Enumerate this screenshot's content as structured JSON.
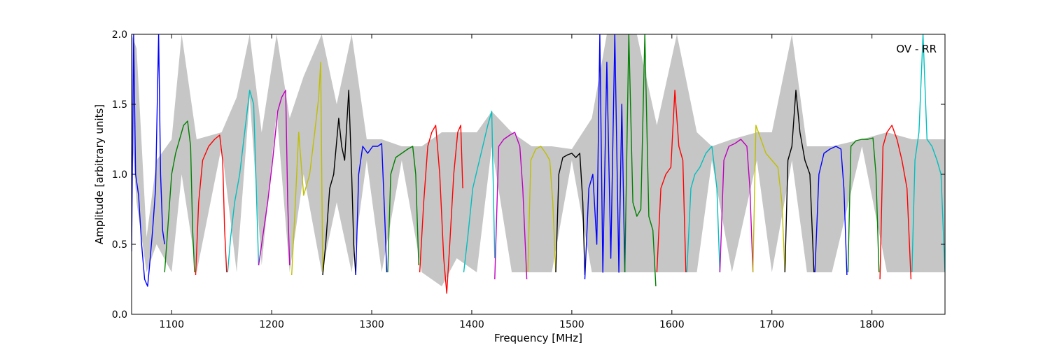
{
  "chart_data": {
    "type": "line",
    "title": "",
    "xlabel": "Frequency [MHz]",
    "ylabel": "Amplitude [arbitrary units]",
    "annotation": "OV - RR",
    "xlim": [
      1060,
      1873
    ],
    "ylim": [
      0.0,
      2.0
    ],
    "x_ticks": [
      1100,
      1200,
      1300,
      1400,
      1500,
      1600,
      1700,
      1800
    ],
    "x_tick_labels": [
      "1100",
      "1200",
      "1300",
      "1400",
      "1500",
      "1600",
      "1700",
      "1800"
    ],
    "y_ticks": [
      0.0,
      0.5,
      1.0,
      1.5,
      2.0
    ],
    "y_tick_labels": [
      "0.0",
      "0.5",
      "1.0",
      "1.5",
      "2.0"
    ],
    "grid": false,
    "background_color": "#c0c0c0",
    "subband_colors": [
      "#0000ff",
      "#008000",
      "#ff0000",
      "#00bfbf",
      "#bf00bf",
      "#bfbf00",
      "#000000"
    ],
    "background_envelope": {
      "color": "#c0c0c0",
      "x": [
        1060,
        1065,
        1075,
        1085,
        1100,
        1110,
        1125,
        1150,
        1165,
        1178,
        1190,
        1205,
        1218,
        1232,
        1250,
        1265,
        1280,
        1295,
        1310,
        1330,
        1350,
        1370,
        1385,
        1405,
        1420,
        1440,
        1460,
        1480,
        1500,
        1520,
        1535,
        1550,
        1565,
        1585,
        1605,
        1625,
        1640,
        1660,
        1685,
        1700,
        1720,
        1735,
        1760,
        1790,
        1815,
        1840,
        1873
      ],
      "upper": [
        2.0,
        1.9,
        0.55,
        1.1,
        1.25,
        2.0,
        1.25,
        1.3,
        1.55,
        2.0,
        1.3,
        2.0,
        1.4,
        1.7,
        2.0,
        1.5,
        2.0,
        1.25,
        1.25,
        1.2,
        1.2,
        1.3,
        1.3,
        1.3,
        1.45,
        1.3,
        1.2,
        1.2,
        1.18,
        1.4,
        2.0,
        2.0,
        2.0,
        1.35,
        2.0,
        1.3,
        1.2,
        1.25,
        1.3,
        1.3,
        2.0,
        1.2,
        1.2,
        1.25,
        1.3,
        1.25,
        1.25
      ],
      "lower": [
        1.3,
        0.8,
        0.3,
        0.5,
        0.3,
        1.0,
        0.3,
        1.2,
        0.3,
        1.55,
        0.35,
        1.45,
        0.3,
        1.0,
        0.3,
        0.8,
        0.3,
        1.1,
        0.3,
        1.1,
        0.3,
        0.2,
        0.4,
        0.3,
        1.2,
        0.3,
        0.3,
        0.3,
        1.1,
        0.3,
        0.3,
        0.3,
        0.3,
        0.3,
        0.3,
        0.3,
        1.1,
        0.3,
        1.1,
        0.3,
        1.1,
        0.3,
        0.3,
        1.2,
        0.3,
        0.3,
        0.3
      ]
    },
    "series": [
      {
        "color": "#0000ff",
        "x": [
          1060,
          1062,
          1064,
          1067,
          1070,
          1073,
          1076,
          1078,
          1081,
          1084,
          1087,
          1089,
          1091,
          1093
        ],
        "y": [
          0.45,
          2.0,
          1.0,
          0.85,
          0.5,
          0.25,
          0.2,
          0.35,
          0.6,
          0.9,
          2.0,
          1.0,
          0.6,
          0.5
        ]
      },
      {
        "color": "#008000",
        "x": [
          1093,
          1096,
          1100,
          1104,
          1108,
          1112,
          1116,
          1119,
          1121,
          1123
        ],
        "y": [
          0.3,
          0.6,
          1.0,
          1.15,
          1.25,
          1.35,
          1.38,
          1.2,
          0.6,
          0.3
        ]
      },
      {
        "color": "#ff0000",
        "x": [
          1124,
          1127,
          1131,
          1137,
          1143,
          1148,
          1151,
          1153,
          1155
        ],
        "y": [
          0.28,
          0.8,
          1.1,
          1.2,
          1.25,
          1.28,
          1.1,
          0.6,
          0.3
        ]
      },
      {
        "color": "#00bfbf",
        "x": [
          1156,
          1159,
          1163,
          1168,
          1173,
          1178,
          1182,
          1185,
          1187
        ],
        "y": [
          0.3,
          0.55,
          0.8,
          1.0,
          1.3,
          1.6,
          1.5,
          0.8,
          0.35
        ]
      },
      {
        "color": "#bf00bf",
        "x": [
          1187,
          1191,
          1196,
          1201,
          1206,
          1210,
          1214,
          1216,
          1218
        ],
        "y": [
          0.35,
          0.55,
          0.8,
          1.1,
          1.45,
          1.55,
          1.6,
          0.8,
          0.35
        ]
      },
      {
        "color": "#bfbf00",
        "x": [
          1220,
          1223,
          1227,
          1232,
          1238,
          1243,
          1247,
          1249,
          1251
        ],
        "y": [
          0.28,
          0.7,
          1.3,
          0.85,
          1.0,
          1.3,
          1.55,
          1.8,
          0.3
        ]
      },
      {
        "color": "#000000",
        "x": [
          1251,
          1254,
          1258,
          1262,
          1267,
          1270,
          1273,
          1277,
          1280,
          1282,
          1284
        ],
        "y": [
          0.28,
          0.5,
          0.9,
          1.0,
          1.4,
          1.2,
          1.1,
          1.6,
          1.0,
          0.5,
          0.28
        ]
      },
      {
        "color": "#0000ff",
        "x": [
          1284,
          1287,
          1291,
          1296,
          1301,
          1306,
          1310,
          1313,
          1315
        ],
        "y": [
          0.28,
          1.0,
          1.2,
          1.15,
          1.2,
          1.2,
          1.22,
          0.7,
          0.3
        ]
      },
      {
        "color": "#008000",
        "x": [
          1316,
          1319,
          1324,
          1330,
          1336,
          1341,
          1344,
          1347
        ],
        "y": [
          0.3,
          1.0,
          1.12,
          1.15,
          1.18,
          1.2,
          1.0,
          0.35
        ]
      },
      {
        "color": "#ff0000",
        "x": [
          1348,
          1352,
          1356,
          1360,
          1364,
          1368,
          1372,
          1375,
          1378,
          1382,
          1386,
          1389,
          1391
        ],
        "y": [
          0.3,
          0.8,
          1.2,
          1.3,
          1.35,
          1.0,
          0.4,
          0.15,
          0.5,
          1.0,
          1.3,
          1.35,
          0.9
        ]
      },
      {
        "color": "#00bfbf",
        "x": [
          1392,
          1396,
          1401,
          1406,
          1411,
          1416,
          1420,
          1423
        ],
        "y": [
          0.3,
          0.55,
          0.9,
          1.05,
          1.2,
          1.35,
          1.45,
          0.4
        ]
      },
      {
        "color": "#bf00bf",
        "x": [
          1423,
          1427,
          1432,
          1438,
          1443,
          1448,
          1451,
          1455
        ],
        "y": [
          0.25,
          1.2,
          1.25,
          1.28,
          1.3,
          1.2,
          0.9,
          0.25
        ]
      },
      {
        "color": "#bfbf00",
        "x": [
          1456,
          1459,
          1464,
          1469,
          1474,
          1478,
          1481,
          1484
        ],
        "y": [
          0.3,
          1.1,
          1.18,
          1.2,
          1.15,
          1.1,
          0.8,
          0.3
        ]
      },
      {
        "color": "#000000",
        "x": [
          1484,
          1487,
          1491,
          1496,
          1500,
          1504,
          1508,
          1511,
          1513
        ],
        "y": [
          0.3,
          1.0,
          1.12,
          1.14,
          1.15,
          1.12,
          1.15,
          0.8,
          0.28
        ]
      },
      {
        "color": "#0000ff",
        "x": [
          1513,
          1517,
          1521,
          1525,
          1528,
          1531,
          1535,
          1539,
          1543,
          1547,
          1550,
          1553
        ],
        "y": [
          0.25,
          0.9,
          1.0,
          0.5,
          2.0,
          0.3,
          1.8,
          0.4,
          2.0,
          0.3,
          1.5,
          0.3
        ]
      },
      {
        "color": "#008000",
        "x": [
          1553,
          1557,
          1561,
          1565,
          1569,
          1573,
          1577,
          1581,
          1584
        ],
        "y": [
          0.3,
          2.0,
          0.8,
          0.7,
          0.75,
          2.0,
          0.7,
          0.6,
          0.2
        ]
      },
      {
        "color": "#ff0000",
        "x": [
          1585,
          1589,
          1594,
          1599,
          1603,
          1607,
          1611,
          1614
        ],
        "y": [
          0.3,
          0.9,
          1.0,
          1.05,
          1.6,
          1.2,
          1.1,
          0.3
        ]
      },
      {
        "color": "#00bfbf",
        "x": [
          1615,
          1619,
          1623,
          1628,
          1634,
          1640,
          1645,
          1648
        ],
        "y": [
          0.3,
          0.9,
          1.0,
          1.05,
          1.15,
          1.2,
          0.9,
          0.3
        ]
      },
      {
        "color": "#bf00bf",
        "x": [
          1648,
          1652,
          1657,
          1663,
          1669,
          1675,
          1678,
          1681
        ],
        "y": [
          0.3,
          1.1,
          1.2,
          1.22,
          1.25,
          1.2,
          0.9,
          0.3
        ]
      },
      {
        "color": "#bfbf00",
        "x": [
          1681,
          1684,
          1689,
          1694,
          1700,
          1706,
          1710,
          1713
        ],
        "y": [
          0.3,
          1.35,
          1.25,
          1.15,
          1.1,
          1.05,
          0.8,
          0.3
        ]
      },
      {
        "color": "#000000",
        "x": [
          1713,
          1716,
          1720,
          1724,
          1728,
          1733,
          1738,
          1742
        ],
        "y": [
          0.3,
          1.1,
          1.2,
          1.6,
          1.3,
          1.1,
          1.0,
          0.3
        ]
      },
      {
        "color": "#0000ff",
        "x": [
          1743,
          1747,
          1752,
          1758,
          1764,
          1769,
          1772,
          1775
        ],
        "y": [
          0.3,
          1.0,
          1.15,
          1.18,
          1.2,
          1.18,
          0.9,
          0.28
        ]
      },
      {
        "color": "#008000",
        "x": [
          1776,
          1779,
          1784,
          1790,
          1796,
          1801,
          1804,
          1807
        ],
        "y": [
          0.3,
          1.2,
          1.24,
          1.25,
          1.25,
          1.26,
          1.0,
          0.3
        ]
      },
      {
        "color": "#ff0000",
        "x": [
          1808,
          1811,
          1815,
          1820,
          1825,
          1830,
          1835,
          1839
        ],
        "y": [
          0.25,
          1.2,
          1.3,
          1.35,
          1.25,
          1.1,
          0.9,
          0.25
        ]
      },
      {
        "color": "#00bfbf",
        "x": [
          1840,
          1843,
          1847,
          1851,
          1855,
          1860,
          1865,
          1869,
          1873
        ],
        "y": [
          0.3,
          1.1,
          1.3,
          2.0,
          1.25,
          1.2,
          1.1,
          1.0,
          0.3
        ]
      }
    ]
  }
}
